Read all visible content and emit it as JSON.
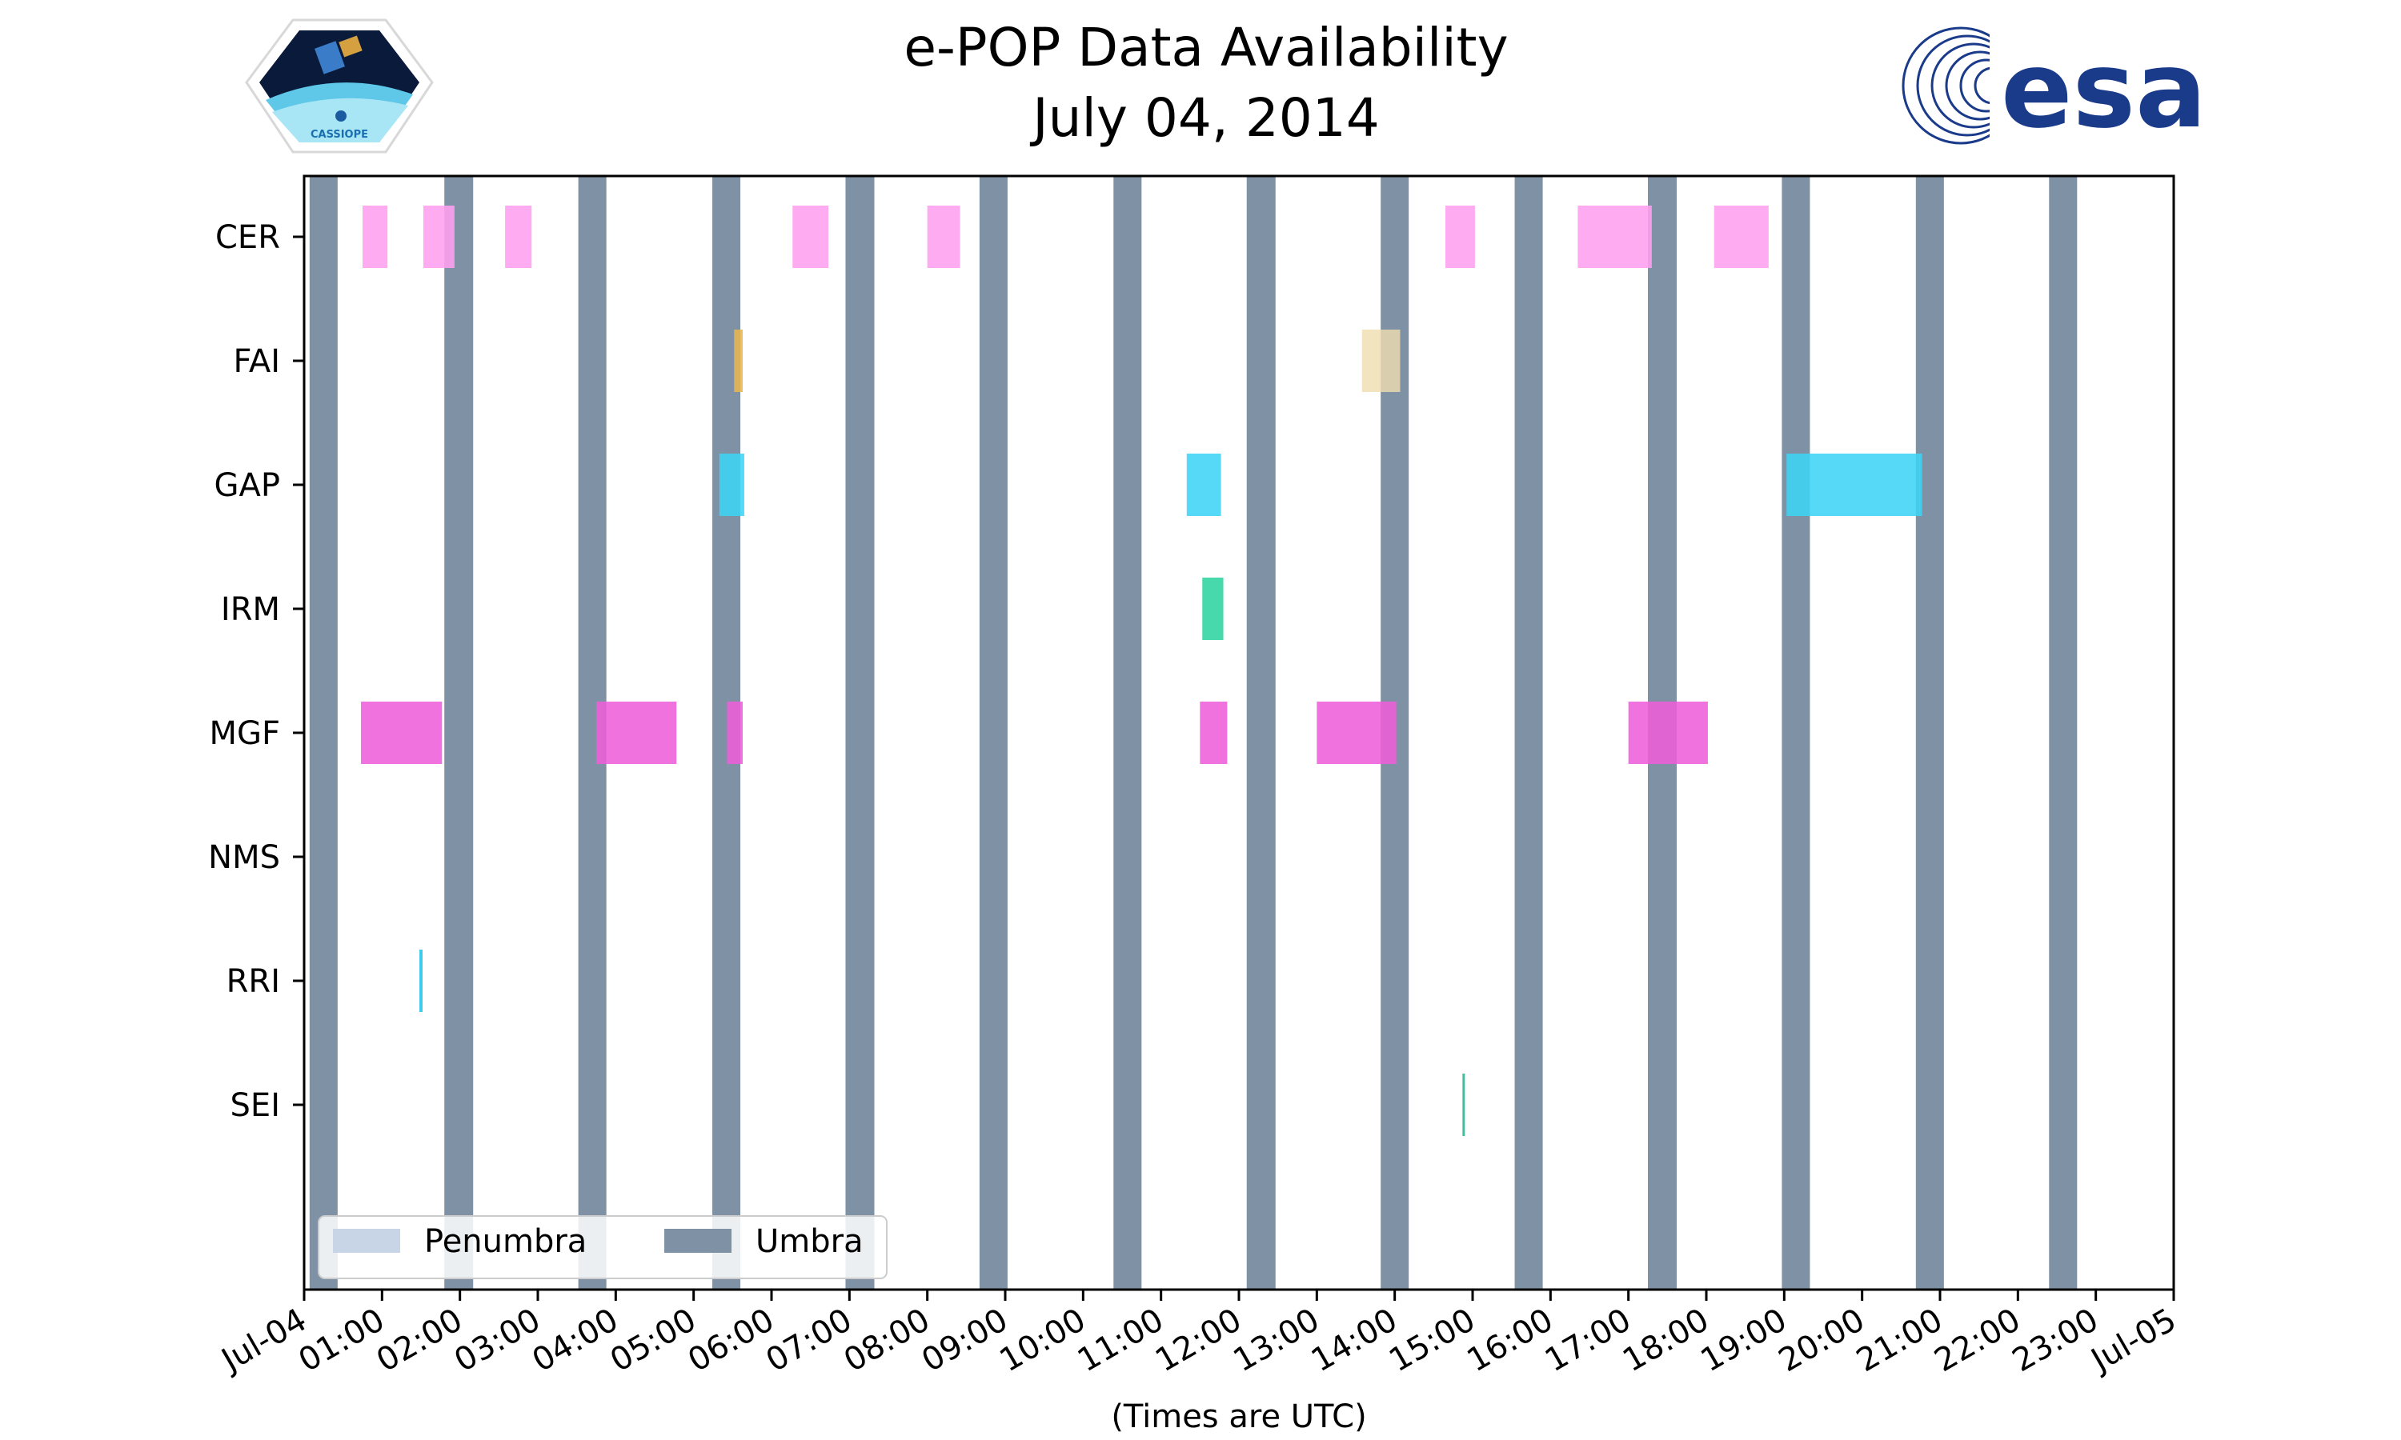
{
  "chart_data": {
    "type": "timeline",
    "title": "e-POP Data Availability",
    "subtitle": "July 04, 2014",
    "xlabel": "(Times are UTC)",
    "x_range_hours": [
      0,
      24
    ],
    "x_ticks": [
      "Jul-04",
      "01:00",
      "02:00",
      "03:00",
      "04:00",
      "05:00",
      "06:00",
      "07:00",
      "08:00",
      "09:00",
      "10:00",
      "11:00",
      "12:00",
      "13:00",
      "14:00",
      "15:00",
      "16:00",
      "17:00",
      "18:00",
      "19:00",
      "20:00",
      "21:00",
      "22:00",
      "23:00",
      "Jul-05"
    ],
    "instruments": [
      "CER",
      "FAI",
      "GAP",
      "IRM",
      "MGF",
      "NMS",
      "RRI",
      "SEI"
    ],
    "instrument_colors": {
      "CER": "#ff9ff0",
      "FAI": "#e8b650",
      "GAP": "#3fd4f5",
      "IRM": "#2dd4a0",
      "MGF": "#ee5fd9",
      "NMS": "#999999",
      "RRI": "#22c4e8",
      "SEI": "#20b890"
    },
    "faint_color": "#f0ddb0",
    "umbra_color": "#7f91a4",
    "penumbra_color": "#c8d5e6",
    "umbra_periods_hours": [
      [
        0.07,
        0.43
      ],
      [
        1.8,
        2.17
      ],
      [
        3.52,
        3.88
      ],
      [
        5.24,
        5.6
      ],
      [
        6.95,
        7.32
      ],
      [
        8.67,
        9.03
      ],
      [
        10.39,
        10.75
      ],
      [
        12.1,
        12.47
      ],
      [
        13.82,
        14.18
      ],
      [
        15.54,
        15.9
      ],
      [
        17.25,
        17.62
      ],
      [
        18.97,
        19.33
      ],
      [
        20.69,
        21.05
      ],
      [
        22.4,
        22.76
      ]
    ],
    "data_intervals_hours": {
      "CER": [
        [
          0.75,
          1.07
        ],
        [
          1.53,
          1.93
        ],
        [
          2.58,
          2.92
        ],
        [
          6.27,
          6.73
        ],
        [
          8.0,
          8.42
        ],
        [
          14.65,
          15.03
        ],
        [
          16.35,
          17.3
        ],
        [
          18.1,
          18.8
        ]
      ],
      "FAI": [
        [
          5.52,
          5.63
        ]
      ],
      "GAP": [
        [
          5.33,
          5.65
        ],
        [
          11.33,
          11.77
        ],
        [
          19.03,
          20.77
        ]
      ],
      "IRM": [
        [
          11.53,
          11.8
        ]
      ],
      "MGF": [
        [
          0.73,
          1.77
        ],
        [
          3.75,
          4.78
        ],
        [
          5.43,
          5.63
        ],
        [
          11.5,
          11.85
        ],
        [
          13.0,
          14.02
        ],
        [
          17.0,
          18.02
        ]
      ],
      "NMS": [],
      "RRI": [
        [
          1.48,
          1.52
        ]
      ],
      "SEI": [
        [
          14.87,
          14.9
        ]
      ]
    },
    "faint_intervals_hours": {
      "FAI": [
        [
          13.58,
          14.07
        ]
      ]
    },
    "legend": {
      "position": "lower-left",
      "entries": [
        "Penumbra",
        "Umbra"
      ]
    }
  },
  "logos": {
    "left_badge_text": "CASSIOPE",
    "right_logo_text": "esa"
  }
}
